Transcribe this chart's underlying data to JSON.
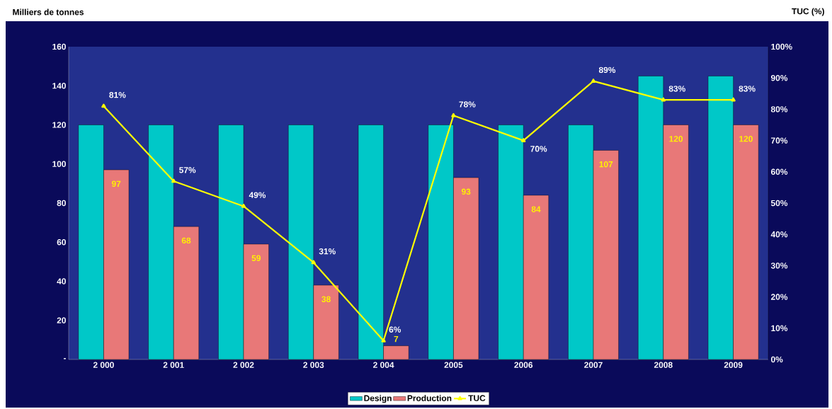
{
  "chart_data": {
    "type": "bar",
    "ylabel": "Milliers de tonnes",
    "y2label": "TUC (%)",
    "categories": [
      "2 000",
      "2 001",
      "2 002",
      "2 003",
      "2 004",
      "2005",
      "2006",
      "2007",
      "2008",
      "2009"
    ],
    "ylim": [
      0,
      160
    ],
    "yticks": [
      {
        "value": 0,
        "label": "-"
      },
      20,
      40,
      60,
      80,
      100,
      120,
      140,
      160
    ],
    "y2lim": [
      0,
      100
    ],
    "y2ticks": [
      {
        "value": 0,
        "label": "0%"
      },
      {
        "value": 10,
        "label": "10%"
      },
      {
        "value": 20,
        "label": "20%"
      },
      {
        "value": 30,
        "label": "30%"
      },
      {
        "value": 40,
        "label": "40%"
      },
      {
        "value": 50,
        "label": "50%"
      },
      {
        "value": 60,
        "label": "60%"
      },
      {
        "value": 70,
        "label": "70%"
      },
      {
        "value": 80,
        "label": "80%"
      },
      {
        "value": 90,
        "label": "90%"
      },
      {
        "value": 100,
        "label": "100%"
      }
    ],
    "legend": "bottom",
    "series": [
      {
        "name": "Design",
        "color": "#00c8c8",
        "values": [
          120,
          120,
          120,
          120,
          120,
          120,
          120,
          120,
          145,
          145
        ]
      },
      {
        "name": "Production",
        "color": "#e87878",
        "values": [
          97,
          68,
          59,
          38,
          7,
          93,
          84,
          107,
          120,
          120
        ],
        "value_labels": [
          "97",
          "68",
          "59",
          "38",
          "7",
          "93",
          "84",
          "107",
          "120",
          "120"
        ]
      },
      {
        "name": "TUC",
        "type": "line",
        "axis": "y2",
        "color": "#ffff00",
        "marker": "triangle",
        "values": [
          81,
          57,
          49,
          31,
          6,
          78,
          70,
          89,
          83,
          83
        ],
        "value_labels": [
          "81%",
          "57%",
          "49%",
          "31%",
          "6%",
          "78%",
          "70%",
          "89%",
          "83%",
          "83%"
        ]
      }
    ]
  }
}
